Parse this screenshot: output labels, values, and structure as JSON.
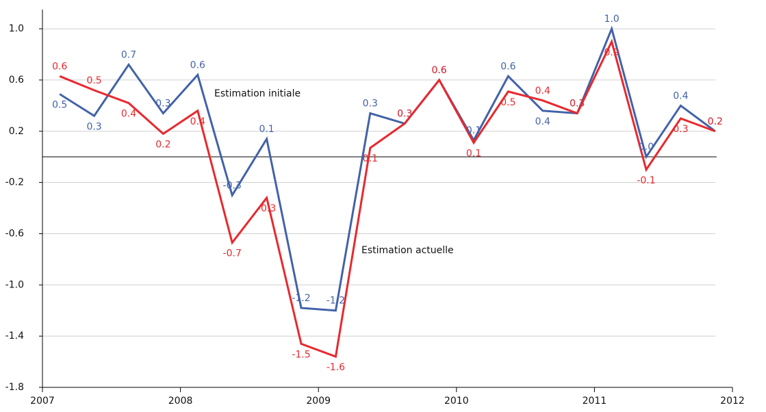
{
  "chart_data": {
    "type": "line",
    "x": [
      2007.125,
      2007.375,
      2007.625,
      2007.875,
      2008.125,
      2008.375,
      2008.625,
      2008.875,
      2009.125,
      2009.375,
      2009.625,
      2009.875,
      2010.125,
      2010.375,
      2010.625,
      2010.875,
      2011.125,
      2011.375,
      2011.625,
      2011.875
    ],
    "series": [
      {
        "name": "Estimation initiale",
        "color": "#4262a8",
        "values": [
          0.49,
          0.32,
          0.72,
          0.34,
          0.64,
          -0.3,
          0.14,
          -1.18,
          -1.2,
          0.34,
          0.26,
          0.6,
          0.13,
          0.63,
          0.36,
          0.34,
          1.0,
          0.0,
          0.4,
          0.2
        ],
        "value_labels": [
          "0.5",
          "0.3",
          "0.7",
          "0.3",
          "0.6",
          "-0.3",
          "0.1",
          "-1.2",
          "-1.2",
          "0.3",
          "0.3",
          "0.6",
          "0.1",
          "0.6",
          "0.4",
          "0.3",
          "1.0",
          "0.0",
          "0.4",
          "0.2"
        ]
      },
      {
        "name": "Estimation actuelle",
        "color": "#e8282e",
        "values": [
          0.63,
          0.52,
          0.42,
          0.18,
          0.36,
          -0.67,
          -0.32,
          -1.46,
          -1.56,
          0.07,
          0.26,
          0.6,
          0.11,
          0.51,
          0.44,
          0.34,
          0.9,
          -0.1,
          0.3,
          0.2
        ],
        "value_labels": [
          "0.6",
          "0.5",
          "0.4",
          "0.2",
          "0.4",
          "-0.7",
          "-0.3",
          "-1.5",
          "-1.6",
          "0.1",
          "0.3",
          "0.6",
          "0.1",
          "0.5",
          "0.4",
          "0.3",
          "0.9",
          "-0.1",
          "0.3",
          "0.2"
        ]
      }
    ],
    "xlim": [
      2007,
      2012
    ],
    "xticks": [
      2007,
      2008,
      2009,
      2010,
      2011,
      2012
    ],
    "ylim": [
      -1.8,
      1.15
    ],
    "yticks": [
      {
        "value": -1.8,
        "label": "-1.8"
      },
      -1.4,
      {
        "value": -1.0,
        "label": "-1.0"
      },
      -0.6,
      -0.2,
      0.2,
      0.6,
      {
        "value": 1.0,
        "label": "1.0"
      }
    ],
    "grid": true
  }
}
